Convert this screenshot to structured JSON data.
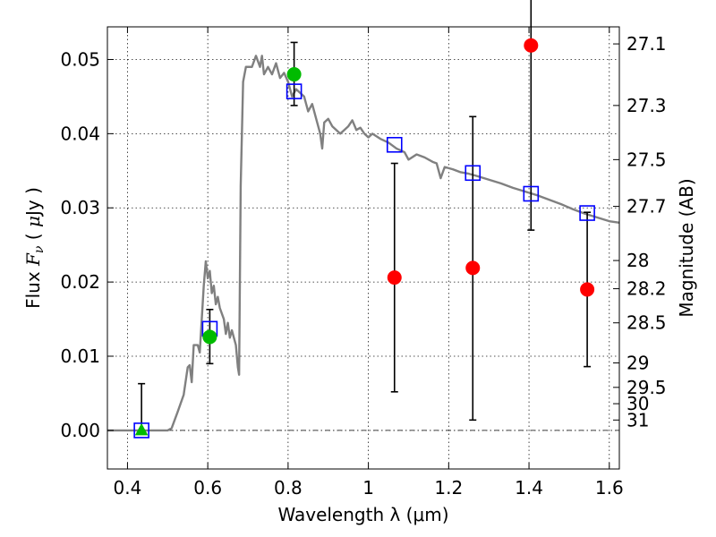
{
  "chart_data": {
    "type": "scatter",
    "xlabel": "Wavelength  λ (μm)",
    "ylabel": "Flux  F_ν  ( μJy )",
    "ylabel_parts": {
      "pre": "Flux  ",
      "math_main": "F",
      "math_sub": "ν",
      "paren_open": "  ( ",
      "unit_greek": "μ",
      "unit": "Jy )"
    },
    "y2label": "Magnitude (AB)",
    "xlim": [
      0.35,
      1.625
    ],
    "ylim": [
      -0.0052,
      0.0544
    ],
    "grid": true,
    "x_ticks": [
      0.4,
      0.6,
      0.8,
      1.0,
      1.2,
      1.4,
      1.6
    ],
    "x_tick_labels": [
      "0.4",
      "0.6",
      "0.8",
      "1",
      "1.2",
      "1.4",
      "1.6"
    ],
    "y_ticks": [
      0.0,
      0.01,
      0.02,
      0.03,
      0.04,
      0.05
    ],
    "y_tick_labels": [
      "0.00",
      "0.01",
      "0.02",
      "0.03",
      "0.04",
      "0.05"
    ],
    "y2_ticks": [
      {
        "label": "27.1",
        "flux": 0.0521
      },
      {
        "label": "27.3",
        "flux": 0.0438
      },
      {
        "label": "27.5",
        "flux": 0.0365
      },
      {
        "label": "27.7",
        "flux": 0.0302
      },
      {
        "label": "28",
        "flux": 0.0229
      },
      {
        "label": "28.2",
        "flux": 0.0191
      },
      {
        "label": "28.5",
        "flux": 0.0145
      },
      {
        "label": "29",
        "flux": 0.0091
      },
      {
        "label": "29.5",
        "flux": 0.0058
      },
      {
        "label": "30",
        "flux": 0.0036
      },
      {
        "label": "31",
        "flux": 0.0014
      }
    ],
    "series": [
      {
        "kind": "line",
        "color": "#808080",
        "points": [
          [
            0.35,
            0.0
          ],
          [
            0.5,
            0.0
          ],
          [
            0.51,
            0.0003
          ],
          [
            0.525,
            0.0025
          ],
          [
            0.54,
            0.0048
          ],
          [
            0.55,
            0.0085
          ],
          [
            0.555,
            0.0088
          ],
          [
            0.56,
            0.0065
          ],
          [
            0.565,
            0.0115
          ],
          [
            0.575,
            0.0115
          ],
          [
            0.58,
            0.0105
          ],
          [
            0.585,
            0.015
          ],
          [
            0.59,
            0.0195
          ],
          [
            0.595,
            0.0228
          ],
          [
            0.6,
            0.0205
          ],
          [
            0.605,
            0.0215
          ],
          [
            0.61,
            0.0185
          ],
          [
            0.615,
            0.0195
          ],
          [
            0.62,
            0.017
          ],
          [
            0.625,
            0.018
          ],
          [
            0.63,
            0.0165
          ],
          [
            0.64,
            0.015
          ],
          [
            0.645,
            0.013
          ],
          [
            0.65,
            0.0145
          ],
          [
            0.655,
            0.0125
          ],
          [
            0.66,
            0.0135
          ],
          [
            0.67,
            0.0115
          ],
          [
            0.675,
            0.0085
          ],
          [
            0.678,
            0.0075
          ],
          [
            0.682,
            0.033
          ],
          [
            0.688,
            0.047
          ],
          [
            0.695,
            0.049
          ],
          [
            0.71,
            0.049
          ],
          [
            0.72,
            0.0505
          ],
          [
            0.73,
            0.049
          ],
          [
            0.735,
            0.0505
          ],
          [
            0.74,
            0.048
          ],
          [
            0.75,
            0.049
          ],
          [
            0.76,
            0.048
          ],
          [
            0.77,
            0.0495
          ],
          [
            0.78,
            0.0475
          ],
          [
            0.79,
            0.0482
          ],
          [
            0.8,
            0.047
          ],
          [
            0.81,
            0.045
          ],
          [
            0.82,
            0.046
          ],
          [
            0.83,
            0.0455
          ],
          [
            0.84,
            0.045
          ],
          [
            0.85,
            0.043
          ],
          [
            0.86,
            0.044
          ],
          [
            0.87,
            0.042
          ],
          [
            0.88,
            0.04
          ],
          [
            0.885,
            0.038
          ],
          [
            0.89,
            0.0415
          ],
          [
            0.9,
            0.042
          ],
          [
            0.91,
            0.041
          ],
          [
            0.92,
            0.0405
          ],
          [
            0.93,
            0.04
          ],
          [
            0.94,
            0.0405
          ],
          [
            0.95,
            0.041
          ],
          [
            0.96,
            0.0418
          ],
          [
            0.97,
            0.0405
          ],
          [
            0.98,
            0.0408
          ],
          [
            0.99,
            0.04
          ],
          [
            1.0,
            0.0395
          ],
          [
            1.01,
            0.04
          ],
          [
            1.03,
            0.0393
          ],
          [
            1.05,
            0.0388
          ],
          [
            1.07,
            0.038
          ],
          [
            1.09,
            0.0375
          ],
          [
            1.1,
            0.0365
          ],
          [
            1.12,
            0.0372
          ],
          [
            1.14,
            0.0368
          ],
          [
            1.16,
            0.0362
          ],
          [
            1.17,
            0.036
          ],
          [
            1.18,
            0.034
          ],
          [
            1.19,
            0.0355
          ],
          [
            1.21,
            0.0352
          ],
          [
            1.23,
            0.0348
          ],
          [
            1.25,
            0.0346
          ],
          [
            1.27,
            0.0343
          ],
          [
            1.3,
            0.0338
          ],
          [
            1.33,
            0.0333
          ],
          [
            1.36,
            0.0327
          ],
          [
            1.39,
            0.0322
          ],
          [
            1.42,
            0.0317
          ],
          [
            1.45,
            0.0311
          ],
          [
            1.48,
            0.0305
          ],
          [
            1.51,
            0.0298
          ],
          [
            1.54,
            0.0292
          ],
          [
            1.57,
            0.0287
          ],
          [
            1.6,
            0.0282
          ],
          [
            1.625,
            0.028
          ]
        ]
      },
      {
        "kind": "model_points",
        "marker": "square",
        "color": "#0000ff",
        "x": [
          0.435,
          0.605,
          0.815,
          1.065,
          1.26,
          1.405,
          1.545
        ],
        "y": [
          0.0,
          0.0137,
          0.0457,
          0.0385,
          0.0347,
          0.0319,
          0.0293
        ]
      },
      {
        "kind": "detections",
        "marker": "circle",
        "color": "#00bb00",
        "x": [
          0.605,
          0.815
        ],
        "y": [
          0.0126,
          0.048
        ],
        "err_low": [
          0.0036,
          0.0042
        ],
        "err_high": [
          0.0037,
          0.0043
        ]
      },
      {
        "kind": "upper_limit_marker",
        "marker": "triangle",
        "color": "#00bb00",
        "x": [
          0.435
        ],
        "y": [
          0.0
        ],
        "err_low": [
          0.0
        ],
        "err_high": [
          0.0063
        ]
      },
      {
        "kind": "non_detections",
        "marker": "circle",
        "color": "#ff0000",
        "x": [
          1.065,
          1.26,
          1.405,
          1.545
        ],
        "y": [
          0.0206,
          0.0219,
          0.0519,
          0.019
        ],
        "err_low": [
          0.0154,
          0.0205,
          0.0249,
          0.0104
        ],
        "err_high": [
          0.0154,
          0.0204,
          0.0249,
          0.0104
        ]
      }
    ],
    "colors": {
      "axes": "#000000",
      "errorbar": "#000000",
      "zero_line": "#000000"
    }
  }
}
